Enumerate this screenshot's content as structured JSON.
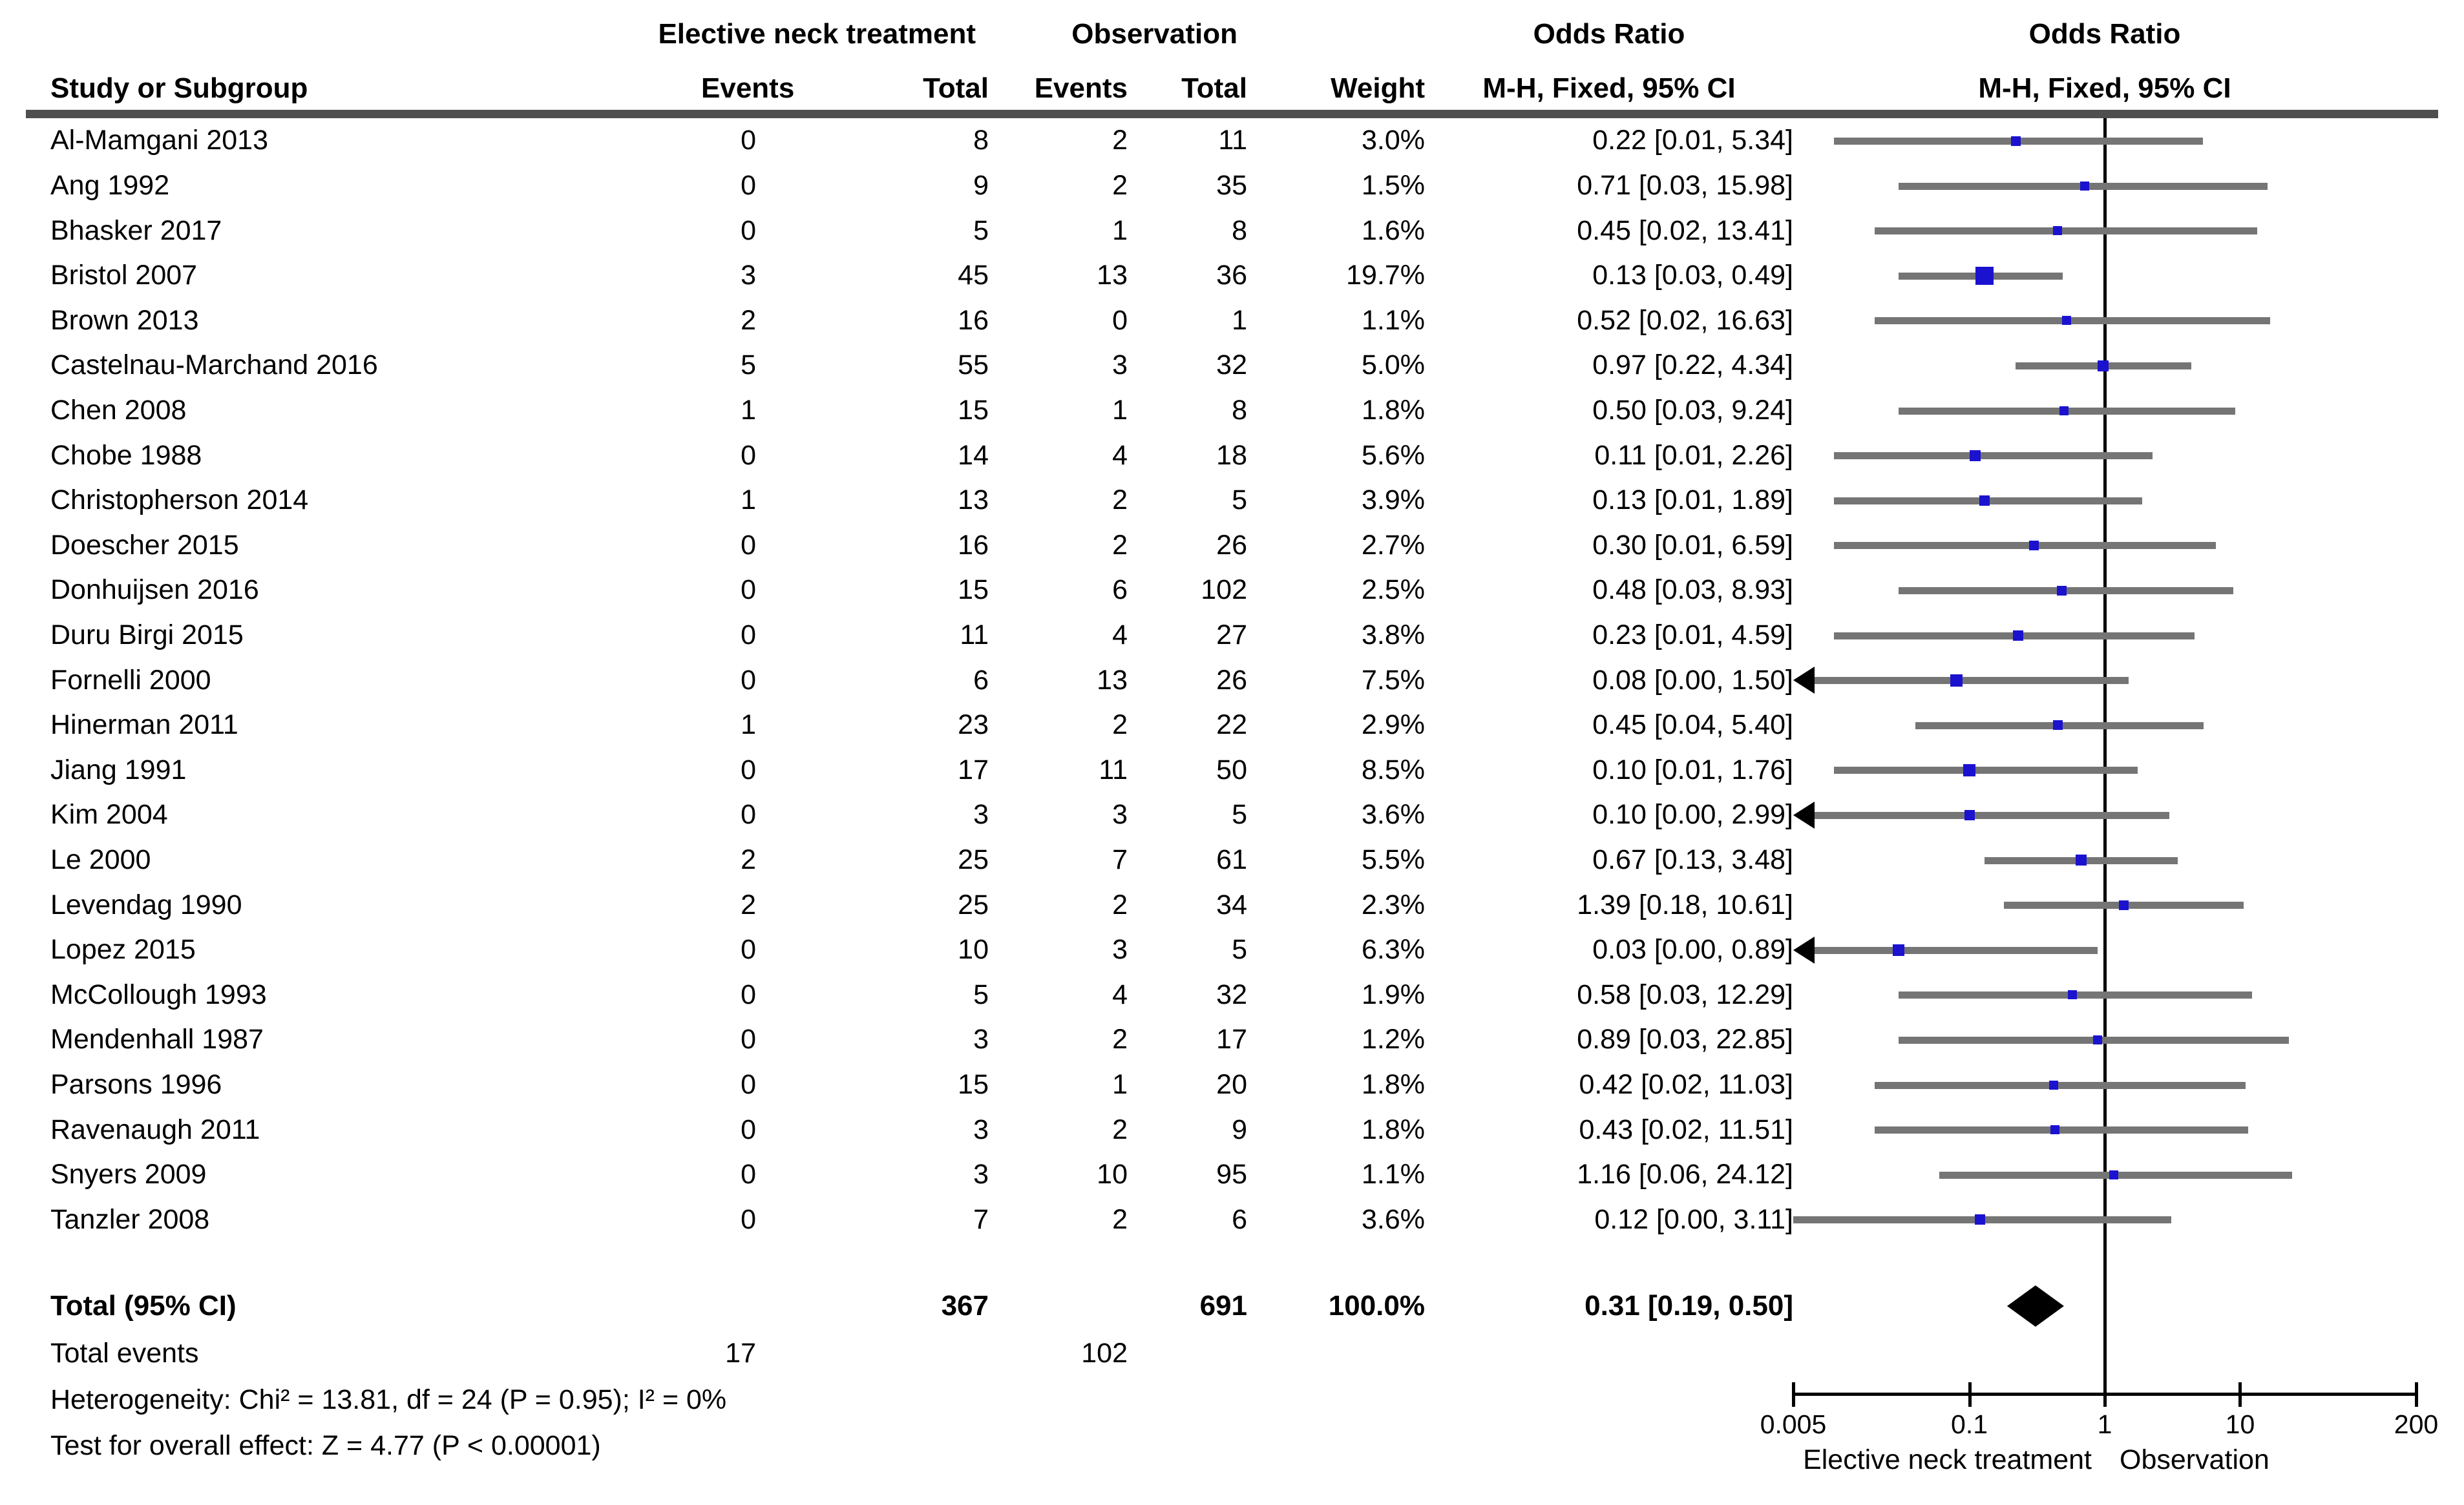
{
  "chart_data": {
    "type": "forest",
    "effect_measure": "Odds Ratio",
    "columns": {
      "study": "Study or Subgroup",
      "group1": "Elective neck treatment",
      "group2": "Observation",
      "events1": "Events",
      "total1": "Total",
      "events2": "Events",
      "total2": "Total",
      "weight": "Weight",
      "or_text_title": "Odds Ratio",
      "or_text_sub": "M-H, Fixed, 95% CI",
      "or_plot_title": "Odds Ratio",
      "or_plot_sub": "M-H, Fixed, 95% CI"
    },
    "studies": [
      {
        "name": "Al-Mamgani 2013",
        "events1": "0",
        "total1": "8",
        "events2": "2",
        "total2": "11",
        "weight": "3.0%",
        "weight_pct": 3.0,
        "or": 0.22,
        "ci_low": 0.01,
        "ci_high": 5.34,
        "ci_text": "0.22 [0.01, 5.34]",
        "arrow_left": false
      },
      {
        "name": "Ang 1992",
        "events1": "0",
        "total1": "9",
        "events2": "2",
        "total2": "35",
        "weight": "1.5%",
        "weight_pct": 1.5,
        "or": 0.71,
        "ci_low": 0.03,
        "ci_high": 15.98,
        "ci_text": "0.71 [0.03, 15.98]",
        "arrow_left": false
      },
      {
        "name": "Bhasker 2017",
        "events1": "0",
        "total1": "5",
        "events2": "1",
        "total2": "8",
        "weight": "1.6%",
        "weight_pct": 1.6,
        "or": 0.45,
        "ci_low": 0.02,
        "ci_high": 13.41,
        "ci_text": "0.45 [0.02, 13.41]",
        "arrow_left": false
      },
      {
        "name": "Bristol 2007",
        "events1": "3",
        "total1": "45",
        "events2": "13",
        "total2": "36",
        "weight": "19.7%",
        "weight_pct": 19.7,
        "or": 0.13,
        "ci_low": 0.03,
        "ci_high": 0.49,
        "ci_text": "0.13 [0.03, 0.49]",
        "arrow_left": false
      },
      {
        "name": "Brown 2013",
        "events1": "2",
        "total1": "16",
        "events2": "0",
        "total2": "1",
        "weight": "1.1%",
        "weight_pct": 1.1,
        "or": 0.52,
        "ci_low": 0.02,
        "ci_high": 16.63,
        "ci_text": "0.52 [0.02, 16.63]",
        "arrow_left": false
      },
      {
        "name": "Castelnau-Marchand 2016",
        "events1": "5",
        "total1": "55",
        "events2": "3",
        "total2": "32",
        "weight": "5.0%",
        "weight_pct": 5.0,
        "or": 0.97,
        "ci_low": 0.22,
        "ci_high": 4.34,
        "ci_text": "0.97 [0.22, 4.34]",
        "arrow_left": false
      },
      {
        "name": "Chen 2008",
        "events1": "1",
        "total1": "15",
        "events2": "1",
        "total2": "8",
        "weight": "1.8%",
        "weight_pct": 1.8,
        "or": 0.5,
        "ci_low": 0.03,
        "ci_high": 9.24,
        "ci_text": "0.50 [0.03, 9.24]",
        "arrow_left": false
      },
      {
        "name": "Chobe 1988",
        "events1": "0",
        "total1": "14",
        "events2": "4",
        "total2": "18",
        "weight": "5.6%",
        "weight_pct": 5.6,
        "or": 0.11,
        "ci_low": 0.01,
        "ci_high": 2.26,
        "ci_text": "0.11 [0.01, 2.26]",
        "arrow_left": false
      },
      {
        "name": "Christopherson 2014",
        "events1": "1",
        "total1": "13",
        "events2": "2",
        "total2": "5",
        "weight": "3.9%",
        "weight_pct": 3.9,
        "or": 0.13,
        "ci_low": 0.01,
        "ci_high": 1.89,
        "ci_text": "0.13 [0.01, 1.89]",
        "arrow_left": false
      },
      {
        "name": "Doescher 2015",
        "events1": "0",
        "total1": "16",
        "events2": "2",
        "total2": "26",
        "weight": "2.7%",
        "weight_pct": 2.7,
        "or": 0.3,
        "ci_low": 0.01,
        "ci_high": 6.59,
        "ci_text": "0.30 [0.01, 6.59]",
        "arrow_left": false
      },
      {
        "name": "Donhuijsen 2016",
        "events1": "0",
        "total1": "15",
        "events2": "6",
        "total2": "102",
        "weight": "2.5%",
        "weight_pct": 2.5,
        "or": 0.48,
        "ci_low": 0.03,
        "ci_high": 8.93,
        "ci_text": "0.48 [0.03, 8.93]",
        "arrow_left": false
      },
      {
        "name": "Duru Birgi 2015",
        "events1": "0",
        "total1": "11",
        "events2": "4",
        "total2": "27",
        "weight": "3.8%",
        "weight_pct": 3.8,
        "or": 0.23,
        "ci_low": 0.01,
        "ci_high": 4.59,
        "ci_text": "0.23 [0.01, 4.59]",
        "arrow_left": false
      },
      {
        "name": "Fornelli 2000",
        "events1": "0",
        "total1": "6",
        "events2": "13",
        "total2": "26",
        "weight": "7.5%",
        "weight_pct": 7.5,
        "or": 0.08,
        "ci_low": 0.0,
        "ci_high": 1.5,
        "ci_text": "0.08 [0.00, 1.50]",
        "arrow_left": true
      },
      {
        "name": "Hinerman 2011",
        "events1": "1",
        "total1": "23",
        "events2": "2",
        "total2": "22",
        "weight": "2.9%",
        "weight_pct": 2.9,
        "or": 0.45,
        "ci_low": 0.04,
        "ci_high": 5.4,
        "ci_text": "0.45 [0.04, 5.40]",
        "arrow_left": false
      },
      {
        "name": "Jiang 1991",
        "events1": "0",
        "total1": "17",
        "events2": "11",
        "total2": "50",
        "weight": "8.5%",
        "weight_pct": 8.5,
        "or": 0.1,
        "ci_low": 0.01,
        "ci_high": 1.76,
        "ci_text": "0.10 [0.01, 1.76]",
        "arrow_left": false
      },
      {
        "name": "Kim 2004",
        "events1": "0",
        "total1": "3",
        "events2": "3",
        "total2": "5",
        "weight": "3.6%",
        "weight_pct": 3.6,
        "or": 0.1,
        "ci_low": 0.0,
        "ci_high": 2.99,
        "ci_text": "0.10 [0.00, 2.99]",
        "arrow_left": true
      },
      {
        "name": "Le 2000",
        "events1": "2",
        "total1": "25",
        "events2": "7",
        "total2": "61",
        "weight": "5.5%",
        "weight_pct": 5.5,
        "or": 0.67,
        "ci_low": 0.13,
        "ci_high": 3.48,
        "ci_text": "0.67 [0.13, 3.48]",
        "arrow_left": false
      },
      {
        "name": "Levendag 1990",
        "events1": "2",
        "total1": "25",
        "events2": "2",
        "total2": "34",
        "weight": "2.3%",
        "weight_pct": 2.3,
        "or": 1.39,
        "ci_low": 0.18,
        "ci_high": 10.61,
        "ci_text": "1.39 [0.18, 10.61]",
        "arrow_left": false
      },
      {
        "name": "Lopez 2015",
        "events1": "0",
        "total1": "10",
        "events2": "3",
        "total2": "5",
        "weight": "6.3%",
        "weight_pct": 6.3,
        "or": 0.03,
        "ci_low": 0.0,
        "ci_high": 0.89,
        "ci_text": "0.03 [0.00, 0.89]",
        "arrow_left": true
      },
      {
        "name": "McCollough 1993",
        "events1": "0",
        "total1": "5",
        "events2": "4",
        "total2": "32",
        "weight": "1.9%",
        "weight_pct": 1.9,
        "or": 0.58,
        "ci_low": 0.03,
        "ci_high": 12.29,
        "ci_text": "0.58 [0.03, 12.29]",
        "arrow_left": false
      },
      {
        "name": "Mendenhall 1987",
        "events1": "0",
        "total1": "3",
        "events2": "2",
        "total2": "17",
        "weight": "1.2%",
        "weight_pct": 1.2,
        "or": 0.89,
        "ci_low": 0.03,
        "ci_high": 22.85,
        "ci_text": "0.89 [0.03, 22.85]",
        "arrow_left": false
      },
      {
        "name": "Parsons 1996",
        "events1": "0",
        "total1": "15",
        "events2": "1",
        "total2": "20",
        "weight": "1.8%",
        "weight_pct": 1.8,
        "or": 0.42,
        "ci_low": 0.02,
        "ci_high": 11.03,
        "ci_text": "0.42 [0.02, 11.03]",
        "arrow_left": false
      },
      {
        "name": "Ravenaugh 2011",
        "events1": "0",
        "total1": "3",
        "events2": "2",
        "total2": "9",
        "weight": "1.8%",
        "weight_pct": 1.8,
        "or": 0.43,
        "ci_low": 0.02,
        "ci_high": 11.51,
        "ci_text": "0.43 [0.02, 11.51]",
        "arrow_left": false
      },
      {
        "name": "Snyers 2009",
        "events1": "0",
        "total1": "3",
        "events2": "10",
        "total2": "95",
        "weight": "1.1%",
        "weight_pct": 1.1,
        "or": 1.16,
        "ci_low": 0.06,
        "ci_high": 24.12,
        "ci_text": "1.16 [0.06, 24.12]",
        "arrow_left": false
      },
      {
        "name": "Tanzler 2008",
        "events1": "0",
        "total1": "7",
        "events2": "2",
        "total2": "6",
        "weight": "3.6%",
        "weight_pct": 3.6,
        "or": 0.12,
        "ci_low": 0.0,
        "ci_high": 3.11,
        "ci_text": "0.12 [0.00, 3.11]",
        "arrow_left": false
      }
    ],
    "total_row": {
      "label": "Total (95% CI)",
      "total1": "367",
      "total2": "691",
      "weight": "100.0%",
      "or": 0.31,
      "ci_low": 0.19,
      "ci_high": 0.5,
      "ci_text": "0.31 [0.19, 0.50]"
    },
    "total_events": {
      "label": "Total events",
      "events1": "17",
      "events2": "102"
    },
    "heterogeneity": "Heterogeneity: Chi² = 13.81, df = 24 (P = 0.95); I² = 0%",
    "overall_effect": "Test for overall effect: Z = 4.77 (P < 0.00001)",
    "axis": {
      "scale": "log",
      "min": 0.005,
      "max": 200,
      "ticks": [
        0.005,
        0.1,
        1,
        10,
        200
      ],
      "tick_labels": [
        "0.005",
        "0.1",
        "1",
        "10",
        "200"
      ],
      "label_left": "Elective neck treatment",
      "label_right": "Observation"
    },
    "colors": {
      "square": "#1b12cf",
      "ci_line": "#757575",
      "diamond": "#000000",
      "rule": "#4f4f4f",
      "axis": "#000000"
    }
  }
}
